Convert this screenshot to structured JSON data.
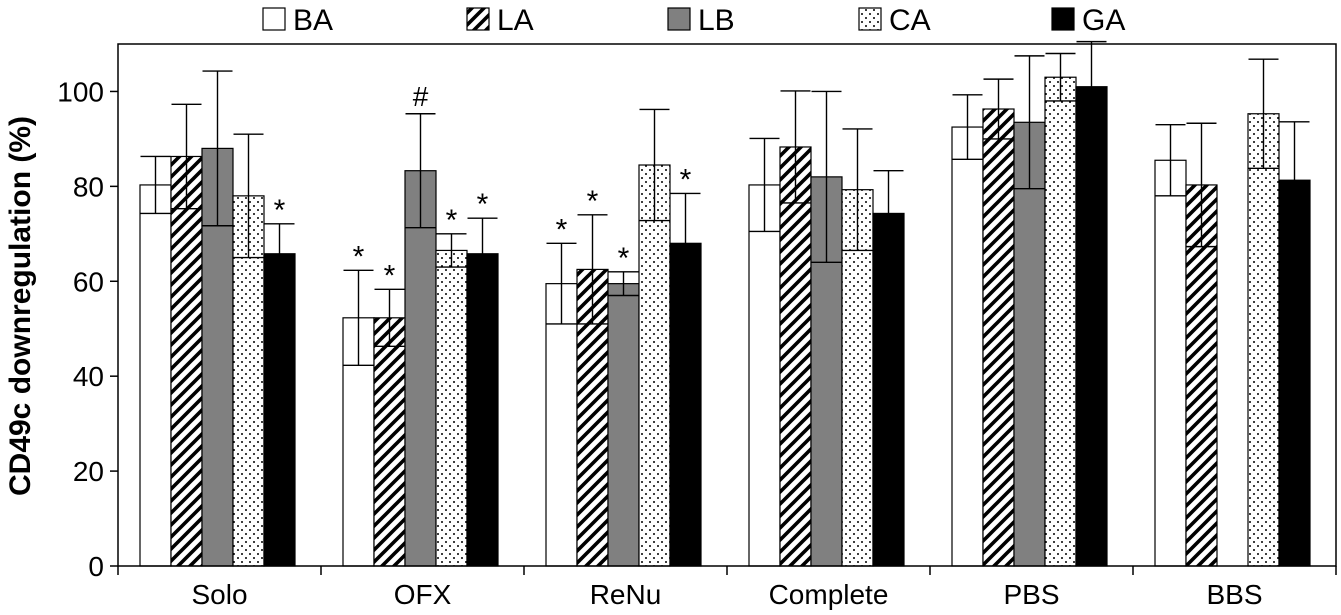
{
  "chart_data": {
    "type": "bar",
    "title": "",
    "xlabel": "",
    "ylabel": "CD49c downregulation (%)",
    "ylim": [
      0,
      110
    ],
    "yticks": [
      0,
      20,
      40,
      60,
      80,
      100
    ],
    "grid": false,
    "legend_position": "top",
    "categories": [
      "Solo",
      "OFX",
      "ReNu",
      "Complete",
      "PBS",
      "BBS"
    ],
    "series": [
      {
        "name": "BA",
        "pattern": "white",
        "values": [
          80.3,
          52.3,
          59.5,
          80.3,
          92.5,
          85.5
        ],
        "errors": [
          6.0,
          10.0,
          8.5,
          9.8,
          6.8,
          7.5
        ],
        "annotations": [
          "",
          "*",
          "*",
          "",
          "",
          ""
        ]
      },
      {
        "name": "LA",
        "pattern": "hatch",
        "values": [
          86.3,
          52.3,
          62.5,
          88.3,
          96.3,
          80.3
        ],
        "errors": [
          11.0,
          6.0,
          11.5,
          11.8,
          6.3,
          13.0
        ],
        "annotations": [
          "",
          "*",
          "*",
          "",
          "",
          ""
        ]
      },
      {
        "name": "LB",
        "pattern": "gray",
        "values": [
          88.0,
          83.3,
          59.5,
          82.0,
          93.5,
          null
        ],
        "errors": [
          16.3,
          12.0,
          2.5,
          18.0,
          14.0,
          null
        ],
        "annotations": [
          "",
          "#",
          "*",
          "",
          "",
          ""
        ]
      },
      {
        "name": "CA",
        "pattern": "dots",
        "values": [
          78.0,
          66.5,
          84.5,
          79.3,
          103.0,
          95.3
        ],
        "errors": [
          13.0,
          3.5,
          11.7,
          12.8,
          5.0,
          11.5
        ],
        "annotations": [
          "",
          "*",
          "",
          "",
          "",
          ""
        ]
      },
      {
        "name": "GA",
        "pattern": "black",
        "values": [
          65.8,
          65.8,
          68.0,
          74.3,
          101.0,
          81.3
        ],
        "errors": [
          6.3,
          7.5,
          10.5,
          9.0,
          9.5,
          12.3
        ],
        "annotations": [
          "*",
          "*",
          "*",
          "",
          "",
          ""
        ]
      }
    ]
  }
}
